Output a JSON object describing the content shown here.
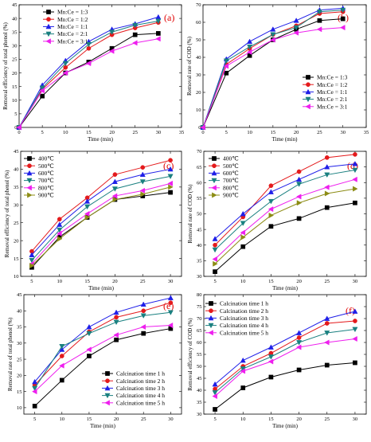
{
  "colors": {
    "black": "#000000",
    "red": "#e41a1c",
    "blue": "#1f1fe8",
    "teal": "#1a8080",
    "magenta": "#ee1fee",
    "olive": "#8c8c14",
    "letter": "#e00000"
  },
  "chart_data": [
    {
      "id": "a",
      "type": "line",
      "panel_letter": "(a)",
      "xlabel": "Time (min)",
      "ylabel": "Removal efficiency of total phenol (%)",
      "xlim": [
        0,
        35
      ],
      "ylim": [
        0,
        45
      ],
      "xticks": [
        0,
        5,
        10,
        15,
        20,
        25,
        30,
        35
      ],
      "yticks": [
        0,
        5,
        10,
        15,
        20,
        25,
        30,
        35,
        40,
        45
      ],
      "legend_position": "top-left",
      "x": [
        0,
        5,
        10,
        15,
        20,
        25,
        30
      ],
      "series": [
        {
          "name": "Mn:Ce = 1:3",
          "color": "#000000",
          "marker": "square",
          "values": [
            0,
            11.5,
            20,
            24,
            29,
            34,
            34.5
          ]
        },
        {
          "name": "Mn:Ce = 1:2",
          "color": "#e41a1c",
          "marker": "circle",
          "values": [
            0,
            14,
            22,
            29,
            34,
            36.5,
            38.5
          ]
        },
        {
          "name": "Mn:Ce = 1:1",
          "color": "#1f1fe8",
          "marker": "triangle-up",
          "values": [
            0,
            15.5,
            24.5,
            31.5,
            36,
            38,
            40.5
          ]
        },
        {
          "name": "Mn:Ce = 2:1",
          "color": "#1a8080",
          "marker": "triangle-down",
          "values": [
            0,
            14.5,
            23.5,
            30.5,
            35,
            37.5,
            39
          ]
        },
        {
          "name": "Mn:Ce = 3:1",
          "color": "#ee1fee",
          "marker": "triangle-left",
          "values": [
            0,
            13.5,
            20,
            23.5,
            28,
            31,
            32.5
          ]
        }
      ]
    },
    {
      "id": "b",
      "type": "line",
      "panel_letter": "(b)",
      "xlabel": "Time (min)",
      "ylabel": "Removal rate of COD (%)",
      "xlim": [
        0,
        35
      ],
      "ylim": [
        0,
        70
      ],
      "xticks": [
        0,
        5,
        10,
        15,
        20,
        25,
        30,
        35
      ],
      "yticks": [
        0,
        10,
        20,
        30,
        40,
        50,
        60,
        70
      ],
      "legend_position": "bottom-right",
      "x": [
        0,
        5,
        10,
        15,
        20,
        25,
        30
      ],
      "series": [
        {
          "name": "Mn:Ce = 1:3",
          "color": "#000000",
          "marker": "square",
          "values": [
            0,
            31,
            41,
            50,
            56,
            61,
            62
          ]
        },
        {
          "name": "Mn:Ce = 1:2",
          "color": "#e41a1c",
          "marker": "circle",
          "values": [
            0,
            36,
            45,
            53,
            58,
            65,
            66
          ]
        },
        {
          "name": "Mn:Ce = 1:1",
          "color": "#1f1fe8",
          "marker": "triangle-up",
          "values": [
            0,
            39,
            49,
            56,
            61,
            67,
            68
          ]
        },
        {
          "name": "Mn:Ce = 2:1",
          "color": "#1a8080",
          "marker": "triangle-down",
          "values": [
            0,
            38,
            46,
            53,
            57,
            66,
            67
          ]
        },
        {
          "name": "Mn:Ce = 3:1",
          "color": "#ee1fee",
          "marker": "triangle-left",
          "values": [
            0,
            35,
            43,
            50,
            54,
            56,
            57
          ]
        }
      ]
    },
    {
      "id": "c",
      "type": "line",
      "panel_letter": "(c)",
      "xlabel": "Time (min)",
      "ylabel": "Removal efficiency of total phenol (%)",
      "xlim": [
        3,
        32
      ],
      "ylim": [
        10,
        45
      ],
      "xticks": [
        5,
        10,
        15,
        20,
        25,
        30
      ],
      "yticks": [
        10,
        15,
        20,
        25,
        30,
        35,
        40,
        45
      ],
      "legend_position": "top-left",
      "x": [
        5,
        10,
        15,
        20,
        25,
        30
      ],
      "series": [
        {
          "name": "400℃",
          "color": "#000000",
          "marker": "square",
          "values": [
            12.5,
            21,
            26.5,
            31.5,
            32.5,
            33.5
          ]
        },
        {
          "name": "500℃",
          "color": "#e41a1c",
          "marker": "circle",
          "values": [
            17,
            26,
            32,
            38.5,
            40.5,
            42.5
          ]
        },
        {
          "name": "600℃",
          "color": "#1f1fe8",
          "marker": "triangle-up",
          "values": [
            16,
            24.5,
            31,
            36.5,
            38.5,
            40
          ]
        },
        {
          "name": "700℃",
          "color": "#1a8080",
          "marker": "triangle-down",
          "values": [
            14.5,
            23,
            29.5,
            34.5,
            36.5,
            38
          ]
        },
        {
          "name": "800℃",
          "color": "#ee1fee",
          "marker": "triangle-left",
          "values": [
            13.5,
            22,
            27.5,
            32.5,
            34,
            36
          ]
        },
        {
          "name": "900℃",
          "color": "#8c8c14",
          "marker": "triangle-right",
          "values": [
            13,
            20.5,
            26.5,
            31.5,
            33,
            35
          ]
        }
      ]
    },
    {
      "id": "d",
      "type": "line",
      "panel_letter": "(d)",
      "xlabel": "Time (min)",
      "ylabel": "Removal rate of COD (%)",
      "xlim": [
        3,
        32
      ],
      "ylim": [
        30,
        70
      ],
      "xticks": [
        5,
        10,
        15,
        20,
        25,
        30
      ],
      "yticks": [
        30,
        35,
        40,
        45,
        50,
        55,
        60,
        65,
        70
      ],
      "legend_position": "top-left",
      "x": [
        5,
        10,
        15,
        20,
        25,
        30
      ],
      "series": [
        {
          "name": "400℃",
          "color": "#000000",
          "marker": "square",
          "values": [
            31.5,
            39.5,
            46,
            48.5,
            52,
            53.5
          ]
        },
        {
          "name": "500℃",
          "color": "#e41a1c",
          "marker": "circle",
          "values": [
            40,
            49,
            59,
            63.5,
            68,
            69
          ]
        },
        {
          "name": "600℃",
          "color": "#1f1fe8",
          "marker": "triangle-up",
          "values": [
            42,
            50,
            57,
            61,
            65,
            66
          ]
        },
        {
          "name": "700℃",
          "color": "#1a8080",
          "marker": "triangle-down",
          "values": [
            38.5,
            47,
            54,
            59.5,
            62.5,
            64
          ]
        },
        {
          "name": "800℃",
          "color": "#ee1fee",
          "marker": "triangle-left",
          "values": [
            35.5,
            44,
            51.5,
            55.5,
            58.5,
            61
          ]
        },
        {
          "name": "900℃",
          "color": "#8c8c14",
          "marker": "triangle-right",
          "values": [
            34,
            42.5,
            49.5,
            53.5,
            56.5,
            58
          ]
        }
      ]
    },
    {
      "id": "e",
      "type": "line",
      "panel_letter": "(e)",
      "xlabel": "Time (min)",
      "ylabel": "Removal rate of total phenol (%)",
      "xlim": [
        3,
        32
      ],
      "ylim": [
        8,
        45
      ],
      "xticks": [
        5,
        10,
        15,
        20,
        25,
        30
      ],
      "yticks": [
        10,
        15,
        20,
        25,
        30,
        35,
        40,
        45
      ],
      "legend_position": "bottom-right",
      "x": [
        5,
        10,
        15,
        20,
        25,
        30
      ],
      "series": [
        {
          "name": "Calcination time 1 h",
          "color": "#000000",
          "marker": "square",
          "values": [
            10.5,
            18.5,
            26,
            31,
            33,
            34.5
          ]
        },
        {
          "name": "Calcination time 2 h",
          "color": "#e41a1c",
          "marker": "circle",
          "values": [
            17,
            26,
            33.5,
            38,
            40,
            42.5
          ]
        },
        {
          "name": "Calcination time 3 h",
          "color": "#1f1fe8",
          "marker": "triangle-up",
          "values": [
            18,
            28,
            35,
            39.5,
            42,
            44
          ]
        },
        {
          "name": "Calcination time 4 h",
          "color": "#1a8080",
          "marker": "triangle-down",
          "values": [
            16,
            29,
            33,
            36.5,
            38.5,
            39.5
          ]
        },
        {
          "name": "Calcination time 5 h",
          "color": "#ee1fee",
          "marker": "triangle-left",
          "values": [
            15,
            23,
            28,
            32.5,
            35,
            35.5
          ]
        }
      ]
    },
    {
      "id": "f",
      "type": "line",
      "panel_letter": "(f)",
      "xlabel": "Time (min)",
      "ylabel": "Removal efficiency of COD (%)",
      "xlim": [
        3,
        32
      ],
      "ylim": [
        30,
        80
      ],
      "xticks": [
        5,
        10,
        15,
        20,
        25,
        30
      ],
      "yticks": [
        30,
        35,
        40,
        45,
        50,
        55,
        60,
        65,
        70,
        75,
        80
      ],
      "legend_position": "top-left",
      "x": [
        5,
        10,
        15,
        20,
        25,
        30
      ],
      "series": [
        {
          "name": "Calcination time 1 h",
          "color": "#000000",
          "marker": "square",
          "values": [
            32,
            41,
            45.5,
            48.5,
            50.5,
            51.5
          ]
        },
        {
          "name": "Calcination time 2 h",
          "color": "#e41a1c",
          "marker": "circle",
          "values": [
            40.5,
            50,
            55.5,
            62,
            68,
            69
          ]
        },
        {
          "name": "Calcination time 3 h",
          "color": "#1f1fe8",
          "marker": "triangle-up",
          "values": [
            42.5,
            52.5,
            58,
            64,
            70,
            73
          ]
        },
        {
          "name": "Calcination time 4 h",
          "color": "#1a8080",
          "marker": "triangle-down",
          "values": [
            39,
            49,
            54,
            60,
            64,
            65.5
          ]
        },
        {
          "name": "Calcination time 5 h",
          "color": "#ee1fee",
          "marker": "triangle-left",
          "values": [
            37.5,
            48,
            52,
            58,
            60,
            61.5
          ]
        }
      ]
    }
  ]
}
